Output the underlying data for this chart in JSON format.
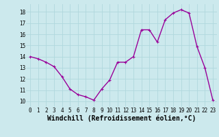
{
  "x": [
    0,
    1,
    2,
    3,
    4,
    5,
    6,
    7,
    8,
    9,
    10,
    11,
    12,
    13,
    14,
    15,
    16,
    17,
    18,
    19,
    20,
    21,
    22,
    23
  ],
  "y": [
    14.0,
    13.8,
    13.5,
    13.1,
    12.2,
    11.1,
    10.6,
    10.4,
    10.1,
    11.1,
    11.9,
    13.5,
    13.5,
    14.0,
    16.4,
    16.4,
    15.3,
    17.3,
    17.9,
    18.2,
    17.9,
    14.9,
    13.0,
    10.1
  ],
  "line_color": "#990099",
  "marker": "+",
  "marker_size": 3,
  "marker_linewidth": 0.8,
  "background_color": "#cce9ed",
  "grid_color": "#b0d8dd",
  "xlabel": "Windchill (Refroidissement éolien,°C)",
  "xlim": [
    -0.5,
    23.5
  ],
  "ylim": [
    9.5,
    18.7
  ],
  "yticks": [
    10,
    11,
    12,
    13,
    14,
    15,
    16,
    17,
    18
  ],
  "xticks": [
    0,
    1,
    2,
    3,
    4,
    5,
    6,
    7,
    8,
    9,
    10,
    11,
    12,
    13,
    14,
    15,
    16,
    17,
    18,
    19,
    20,
    21,
    22,
    23
  ],
  "tick_label_fontsize": 5.5,
  "xlabel_fontsize": 7.0,
  "line_width": 1.0
}
